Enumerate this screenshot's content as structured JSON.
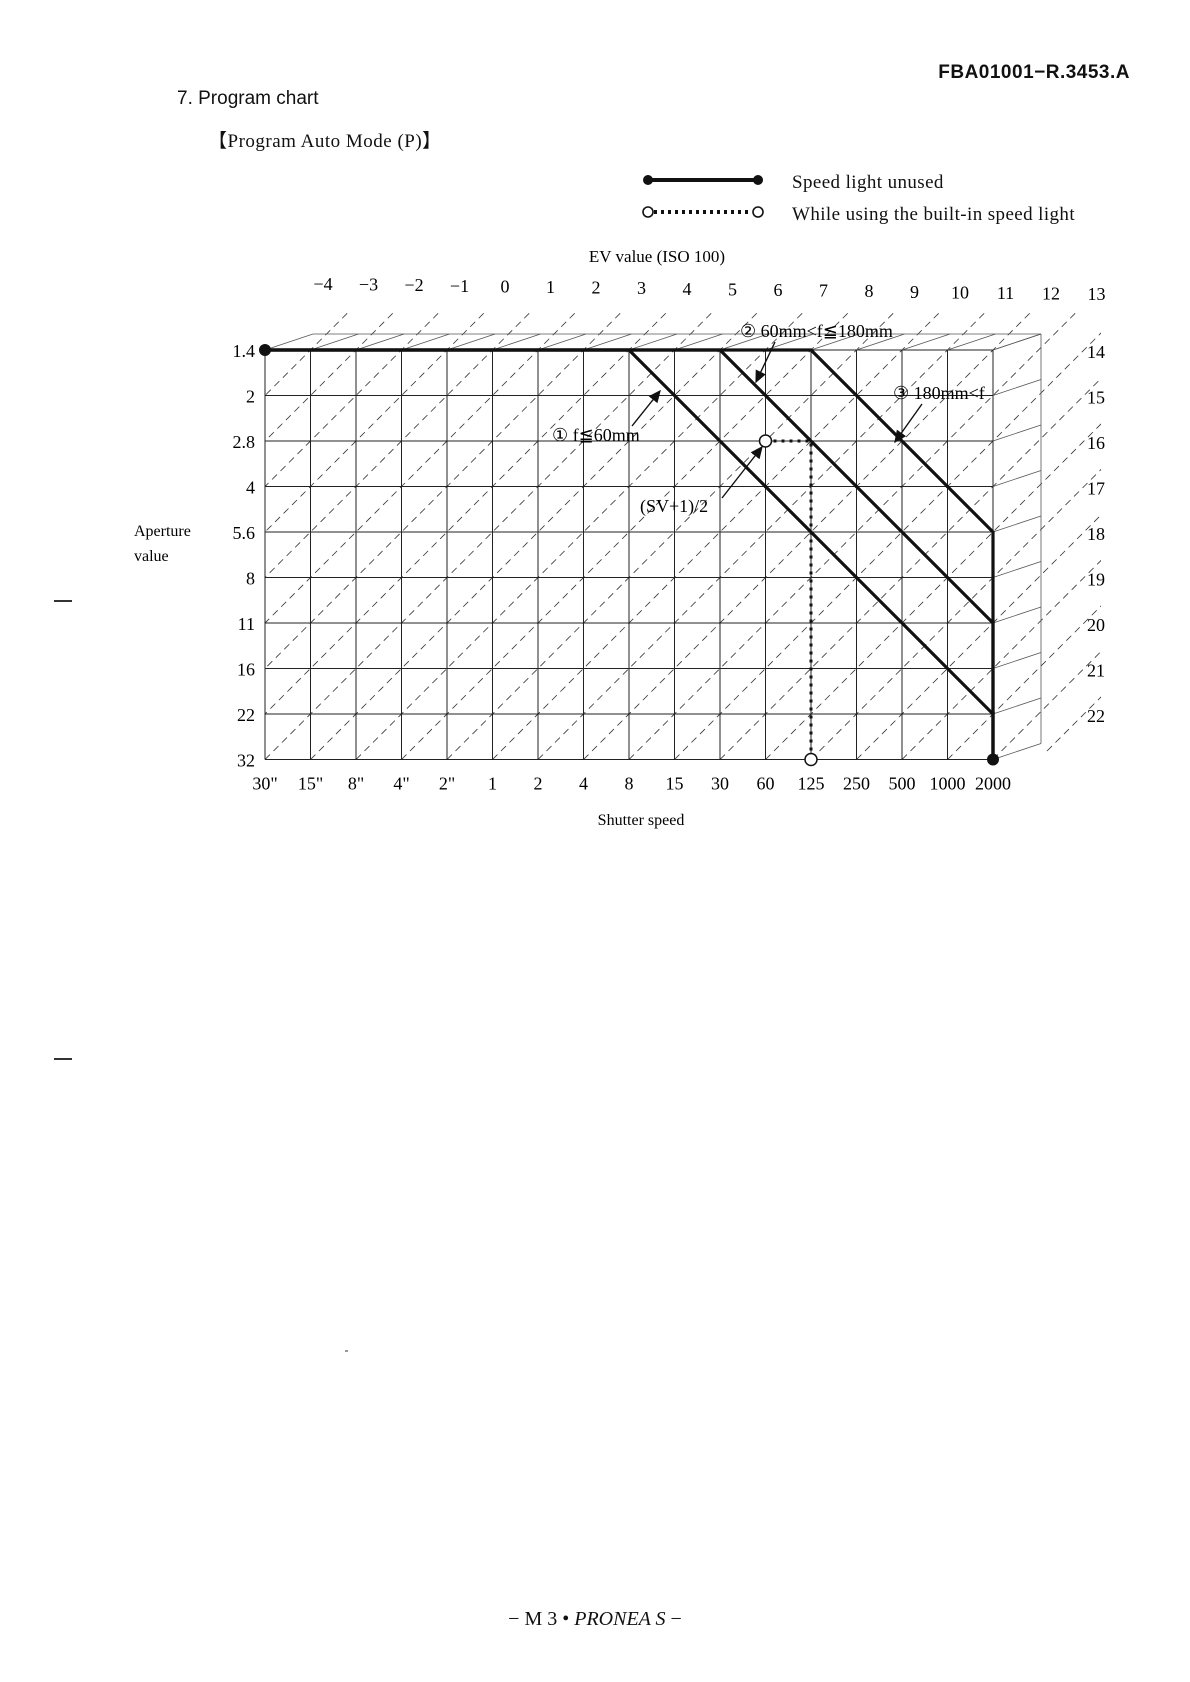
{
  "document_id": "FBA01001−R.3453.A",
  "section_title": "7. Program chart",
  "mode_title": "【Program Auto Mode (P)】",
  "legend": [
    {
      "style": "solid",
      "label": "Speed light unused"
    },
    {
      "style": "dotted",
      "label": "While using the built-in speed light"
    }
  ],
  "footer": {
    "prefix": "− M 3 •",
    "model": "PRONEA S",
    "suffix": "−"
  },
  "chart_data": {
    "type": "line",
    "title": "",
    "top_axis_label": "EV value (ISO 100)",
    "xlabel": "Shutter speed",
    "ylabel": "Aperture value",
    "x_tick_labels": [
      "30\"",
      "15\"",
      "8\"",
      "4\"",
      "2\"",
      "1",
      "2",
      "4",
      "8",
      "15",
      "30",
      "60",
      "125",
      "250",
      "500",
      "1000",
      "2000"
    ],
    "y_tick_labels": [
      "1.4",
      "2",
      "2.8",
      "4",
      "5.6",
      "8",
      "11",
      "16",
      "22",
      "32"
    ],
    "ev_top_labels": [
      "−4",
      "−3",
      "−2",
      "−1",
      "0",
      "1",
      "2",
      "3",
      "4",
      "5",
      "6",
      "7",
      "8",
      "9",
      "10",
      "11",
      "12",
      "13"
    ],
    "ev_right_labels": [
      "14",
      "15",
      "16",
      "17",
      "18",
      "19",
      "20",
      "21",
      "22"
    ],
    "units_note": "x values are shutter-speed stops counted from 30\" (0) to 1/2000 (16); y values are aperture stops counted from f/1.4 (0) to f/32 (9)",
    "series": [
      {
        "name": "① f≦60mm",
        "style": "solid",
        "points": [
          [
            0,
            0
          ],
          [
            8,
            0
          ],
          [
            16,
            8
          ],
          [
            16,
            9
          ]
        ]
      },
      {
        "name": "② 60mm<f≦180mm",
        "style": "solid",
        "points": [
          [
            0,
            0
          ],
          [
            10,
            0
          ],
          [
            16,
            6
          ],
          [
            16,
            9
          ]
        ]
      },
      {
        "name": "③ 180mm<f",
        "style": "solid",
        "points": [
          [
            0,
            0
          ],
          [
            12,
            0
          ],
          [
            16,
            4
          ],
          [
            16,
            9
          ]
        ]
      },
      {
        "name": "(SV+1)/2",
        "style": "dotted",
        "points": [
          [
            11,
            2
          ],
          [
            12,
            2
          ],
          [
            12,
            9
          ]
        ]
      }
    ],
    "annotations": [
      {
        "text": "① f≦60mm"
      },
      {
        "text": "② 60mm<f≦180mm"
      },
      {
        "text": "③ 180mm<f"
      },
      {
        "text": "(SV+1)/2"
      }
    ],
    "grid": true,
    "legend_position": "top-right"
  }
}
